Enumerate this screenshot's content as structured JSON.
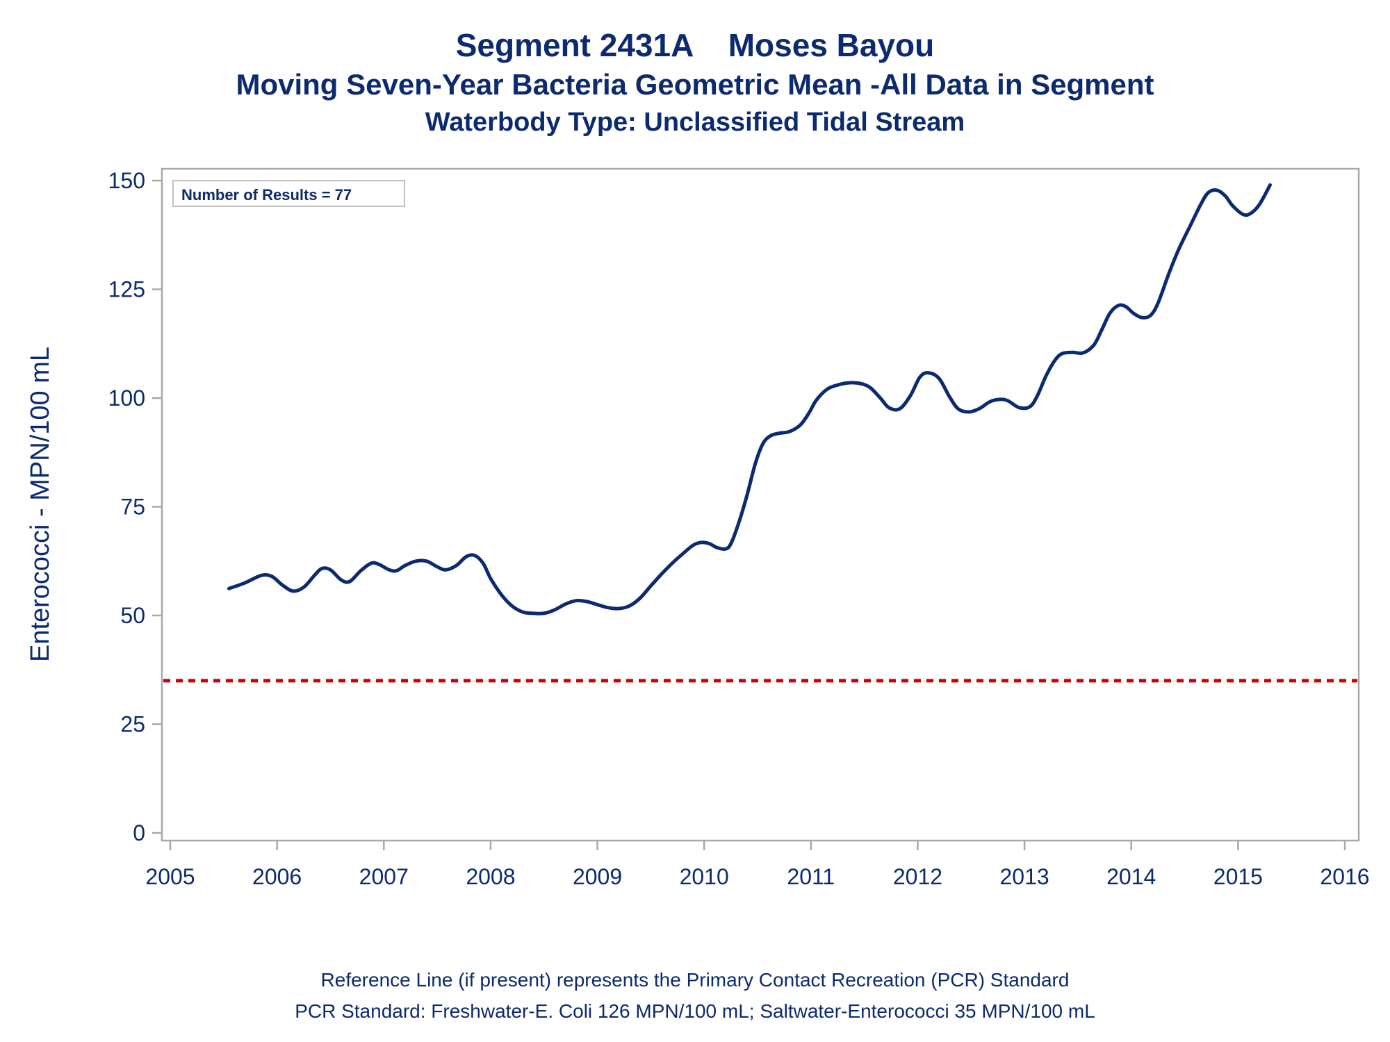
{
  "chart_data": {
    "type": "line",
    "title": "Segment 2431A    Moses Bayou",
    "subtitle": "Moving Seven-Year Bacteria Geometric Mean -All Data in Segment",
    "subtitle2": "Waterbody Type: Unclassified Tidal Stream",
    "xlabel": "",
    "ylabel": "Enterococci - MPN/100 mL",
    "xlim": [
      2005,
      2016
    ],
    "ylim": [
      0,
      150
    ],
    "x_ticks": [
      "2005",
      "2006",
      "2007",
      "2008",
      "2009",
      "2010",
      "2011",
      "2012",
      "2013",
      "2014",
      "2015",
      "2016"
    ],
    "y_ticks": [
      "0",
      "25",
      "50",
      "75",
      "100",
      "125",
      "150"
    ],
    "annotation": "Number of Results = 77",
    "reference_line": {
      "y": 35,
      "color": "#cc0000",
      "style": "dashed"
    },
    "grid": false,
    "series": [
      {
        "color": "#0b2a6f",
        "x": [
          2005.55,
          2005.7,
          2005.85,
          2005.95,
          2006.05,
          2006.15,
          2006.25,
          2006.35,
          2006.42,
          2006.5,
          2006.6,
          2006.68,
          2006.78,
          2006.88,
          2006.95,
          2007.05,
          2007.12,
          2007.2,
          2007.3,
          2007.4,
          2007.5,
          2007.58,
          2007.68,
          2007.77,
          2007.85,
          2007.93,
          2008.0,
          2008.1,
          2008.2,
          2008.3,
          2008.4,
          2008.5,
          2008.6,
          2008.7,
          2008.8,
          2008.9,
          2009.0,
          2009.1,
          2009.2,
          2009.3,
          2009.4,
          2009.5,
          2009.6,
          2009.7,
          2009.8,
          2009.9,
          2009.98,
          2010.05,
          2010.12,
          2010.2,
          2010.25,
          2010.32,
          2010.4,
          2010.48,
          2010.55,
          2010.62,
          2010.7,
          2010.8,
          2010.9,
          2010.98,
          2011.05,
          2011.15,
          2011.25,
          2011.35,
          2011.45,
          2011.55,
          2011.65,
          2011.73,
          2011.83,
          2011.93,
          2012.02,
          2012.1,
          2012.2,
          2012.3,
          2012.38,
          2012.48,
          2012.58,
          2012.68,
          2012.78,
          2012.85,
          2012.95,
          2013.05,
          2013.12,
          2013.2,
          2013.28,
          2013.35,
          2013.45,
          2013.55,
          2013.65,
          2013.72,
          2013.8,
          2013.88,
          2013.95,
          2014.02,
          2014.1,
          2014.18,
          2014.25,
          2014.35,
          2014.45,
          2014.55,
          2014.65,
          2014.72,
          2014.8,
          2014.88,
          2014.95,
          2015.05,
          2015.12,
          2015.2,
          2015.3
        ],
        "values": [
          56.2,
          57.5,
          59.2,
          59.0,
          57.0,
          55.6,
          56.5,
          59.2,
          60.8,
          60.5,
          58.2,
          57.8,
          60.2,
          62.0,
          61.8,
          60.5,
          60.3,
          61.5,
          62.5,
          62.5,
          61.2,
          60.5,
          61.5,
          63.5,
          63.8,
          62.0,
          58.5,
          54.8,
          52.2,
          50.8,
          50.5,
          50.5,
          51.3,
          52.6,
          53.4,
          53.2,
          52.5,
          51.8,
          51.6,
          52.2,
          54.0,
          56.8,
          59.5,
          62.0,
          64.2,
          66.2,
          66.8,
          66.5,
          65.6,
          65.3,
          66.5,
          71.0,
          77.5,
          85.0,
          89.5,
          91.3,
          91.9,
          92.3,
          93.8,
          96.5,
          99.5,
          102.0,
          103.0,
          103.5,
          103.4,
          102.5,
          100.0,
          97.8,
          97.5,
          100.5,
          104.8,
          105.8,
          104.5,
          100.2,
          97.5,
          96.8,
          97.6,
          99.2,
          99.7,
          99.3,
          97.8,
          98.0,
          100.5,
          105.0,
          108.5,
          110.2,
          110.5,
          110.4,
          112.2,
          115.5,
          119.5,
          121.3,
          121.0,
          119.5,
          118.5,
          119.0,
          121.8,
          128.5,
          134.5,
          139.5,
          144.5,
          147.2,
          147.8,
          146.5,
          144.2,
          142.2,
          142.5,
          144.5,
          149.0
        ]
      }
    ]
  },
  "footnotes": {
    "line1": "Reference Line (if present) represents the Primary Contact Recreation (PCR) Standard",
    "line2": "PCR Standard: Freshwater-E. Coli 126 MPN/100 mL; Saltwater-Enterococci 35 MPN/100 mL"
  },
  "colors": {
    "text": "#0b2a6f",
    "frame": "#a8a8a8",
    "reference": "#cc0000"
  }
}
